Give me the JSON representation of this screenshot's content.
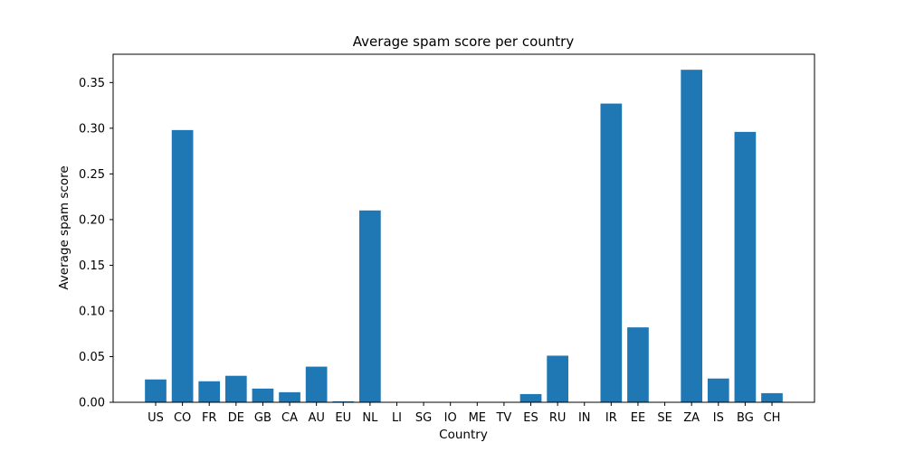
{
  "chart_data": {
    "type": "bar",
    "title": "Average spam score per country",
    "xlabel": "Country",
    "ylabel": "Average spam score",
    "categories": [
      "US",
      "CO",
      "FR",
      "DE",
      "GB",
      "CA",
      "AU",
      "EU",
      "NL",
      "LI",
      "SG",
      "IO",
      "ME",
      "TV",
      "ES",
      "RU",
      "IN",
      "IR",
      "EE",
      "SE",
      "ZA",
      "IS",
      "BG",
      "CH"
    ],
    "values": [
      0.025,
      0.298,
      0.023,
      0.029,
      0.015,
      0.011,
      0.039,
      0.001,
      0.21,
      0.0,
      0.0,
      0.0,
      0.0,
      0.0,
      0.009,
      0.051,
      0.0,
      0.327,
      0.082,
      0.0,
      0.364,
      0.026,
      0.296,
      0.01
    ],
    "ylim": [
      0,
      0.381
    ],
    "yticks": [
      0.0,
      0.05,
      0.1,
      0.15,
      0.2,
      0.25,
      0.3,
      0.35
    ],
    "ytick_labels": [
      "0.00",
      "0.05",
      "0.10",
      "0.15",
      "0.20",
      "0.25",
      "0.30",
      "0.35"
    ],
    "bar_color": "#1f77b4",
    "grid": false,
    "legend": "none"
  }
}
